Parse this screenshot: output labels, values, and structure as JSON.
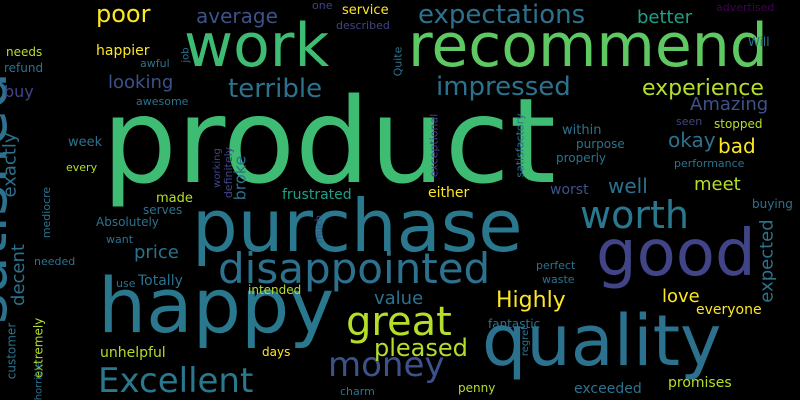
{
  "background": "#000000",
  "palette": {
    "green": "#3fbc73",
    "teal": "#2a788e",
    "tealblue": "#2c728e",
    "blue": "#3b528b",
    "indigo": "#414487",
    "purple": "#46337e",
    "deep": "#440154",
    "sea": "#21918c",
    "mint": "#5ec962",
    "lime": "#b5de2b",
    "yellow": "#fde725",
    "aqua": "#1fa187",
    "cyan": "#22a884"
  },
  "words": [
    {
      "text": "product",
      "size": 118,
      "color": "#3fbc73",
      "vertical": false
    },
    {
      "text": "purchase",
      "size": 72,
      "color": "#2a788e",
      "vertical": false
    },
    {
      "text": "quality",
      "size": 70,
      "color": "#2c728e",
      "vertical": false
    },
    {
      "text": "happy",
      "size": 76,
      "color": "#2a788e",
      "vertical": false
    },
    {
      "text": "good",
      "size": 64,
      "color": "#414487",
      "vertical": false
    },
    {
      "text": "work",
      "size": 60,
      "color": "#3fbc73",
      "vertical": false
    },
    {
      "text": "recommend",
      "size": 60,
      "color": "#5ec962",
      "vertical": false
    },
    {
      "text": "satisfied",
      "size": 60,
      "color": "#2c728e",
      "vertical": true
    },
    {
      "text": "disappointed",
      "size": 42,
      "color": "#2c728e",
      "vertical": false
    },
    {
      "text": "worth",
      "size": 38,
      "color": "#2a788e",
      "vertical": false
    },
    {
      "text": "great",
      "size": 40,
      "color": "#b5de2b",
      "vertical": false
    },
    {
      "text": "money",
      "size": 34,
      "color": "#3b528b",
      "vertical": false
    },
    {
      "text": "Excellent",
      "size": 34,
      "color": "#2a788e",
      "vertical": false
    },
    {
      "text": "expectations",
      "size": 26,
      "color": "#2c728e",
      "vertical": false
    },
    {
      "text": "impressed",
      "size": 26,
      "color": "#2c728e",
      "vertical": false
    },
    {
      "text": "terrible",
      "size": 26,
      "color": "#2c728e",
      "vertical": false
    },
    {
      "text": "experience",
      "size": 22,
      "color": "#b5de2b",
      "vertical": false
    },
    {
      "text": "pleased",
      "size": 24,
      "color": "#b5de2b",
      "vertical": false
    },
    {
      "text": "Highly",
      "size": 22,
      "color": "#fde725",
      "vertical": false
    },
    {
      "text": "poor",
      "size": 24,
      "color": "#fde725",
      "vertical": false
    },
    {
      "text": "average",
      "size": 20,
      "color": "#3b528b",
      "vertical": false
    },
    {
      "text": "better",
      "size": 18,
      "color": "#1fa187",
      "vertical": false
    },
    {
      "text": "Amazing",
      "size": 18,
      "color": "#3b528b",
      "vertical": false
    },
    {
      "text": "bad",
      "size": 20,
      "color": "#fde725",
      "vertical": false
    },
    {
      "text": "okay",
      "size": 20,
      "color": "#2c728e",
      "vertical": false
    },
    {
      "text": "well",
      "size": 20,
      "color": "#2c728e",
      "vertical": false
    },
    {
      "text": "meet",
      "size": 18,
      "color": "#b5de2b",
      "vertical": false
    },
    {
      "text": "looking",
      "size": 18,
      "color": "#3b528b",
      "vertical": false
    },
    {
      "text": "love",
      "size": 18,
      "color": "#fde725",
      "vertical": false
    },
    {
      "text": "value",
      "size": 18,
      "color": "#2c728e",
      "vertical": false
    },
    {
      "text": "price",
      "size": 18,
      "color": "#2c728e",
      "vertical": false
    },
    {
      "text": "expected",
      "size": 18,
      "color": "#2c728e",
      "vertical": true
    },
    {
      "text": "exactly",
      "size": 18,
      "color": "#2c728e",
      "vertical": true
    },
    {
      "text": "decent",
      "size": 18,
      "color": "#2c728e",
      "vertical": true
    },
    {
      "text": "broke",
      "size": 16,
      "color": "#2c728e",
      "vertical": true
    },
    {
      "text": "buy",
      "size": 16,
      "color": "#414487",
      "vertical": false
    },
    {
      "text": "frustrated",
      "size": 14,
      "color": "#1fa187",
      "vertical": false
    },
    {
      "text": "Totally",
      "size": 14,
      "color": "#2c728e",
      "vertical": false
    },
    {
      "text": "everyone",
      "size": 14,
      "color": "#fde725",
      "vertical": false
    },
    {
      "text": "promises",
      "size": 14,
      "color": "#b5de2b",
      "vertical": false
    },
    {
      "text": "exceeded",
      "size": 14,
      "color": "#2c728e",
      "vertical": false
    },
    {
      "text": "unhelpful",
      "size": 14,
      "color": "#b5de2b",
      "vertical": false
    },
    {
      "text": "either",
      "size": 14,
      "color": "#fde725",
      "vertical": false
    },
    {
      "text": "worst",
      "size": 14,
      "color": "#3b528b",
      "vertical": false
    },
    {
      "text": "happier",
      "size": 14,
      "color": "#fde725",
      "vertical": false
    },
    {
      "text": "within",
      "size": 13,
      "color": "#2c728e",
      "vertical": false
    },
    {
      "text": "service",
      "size": 13,
      "color": "#fde725",
      "vertical": false
    },
    {
      "text": "made",
      "size": 13,
      "color": "#b5de2b",
      "vertical": false
    },
    {
      "text": "week",
      "size": 13,
      "color": "#2c728e",
      "vertical": false
    },
    {
      "text": "awesome",
      "size": 11,
      "color": "#2c728e",
      "vertical": false
    },
    {
      "text": "Absolutely",
      "size": 12,
      "color": "#2c728e",
      "vertical": false
    },
    {
      "text": "fantastic",
      "size": 12,
      "color": "#2c728e",
      "vertical": false
    },
    {
      "text": "customer",
      "size": 12,
      "color": "#2c728e",
      "vertical": true
    },
    {
      "text": "extremely",
      "size": 12,
      "color": "#b5de2b",
      "vertical": true
    },
    {
      "text": "mediocre",
      "size": 11,
      "color": "#2c728e",
      "vertical": true
    },
    {
      "text": "definitely",
      "size": 11,
      "color": "#414487",
      "vertical": true
    },
    {
      "text": "satisfactory",
      "size": 11,
      "color": "#2c728e",
      "vertical": true
    },
    {
      "text": "exceptional",
      "size": 11,
      "color": "#414487",
      "vertical": true
    },
    {
      "text": "Quite",
      "size": 11,
      "color": "#2c728e",
      "vertical": true
    },
    {
      "text": "working",
      "size": 10,
      "color": "#414487",
      "vertical": true
    },
    {
      "text": "regret",
      "size": 10,
      "color": "#2c728e",
      "vertical": true
    },
    {
      "text": "horrible",
      "size": 10,
      "color": "#2c728e",
      "vertical": true
    },
    {
      "text": "much",
      "size": 10,
      "color": "#414487",
      "vertical": true
    },
    {
      "text": "job",
      "size": 10,
      "color": "#2c728e",
      "vertical": true
    },
    {
      "text": "needs",
      "size": 12,
      "color": "#b5de2b",
      "vertical": false
    },
    {
      "text": "refund",
      "size": 12,
      "color": "#2c728e",
      "vertical": false
    },
    {
      "text": "awful",
      "size": 11,
      "color": "#2c728e",
      "vertical": false
    },
    {
      "text": "one",
      "size": 11,
      "color": "#414487",
      "vertical": false
    },
    {
      "text": "described",
      "size": 11,
      "color": "#414487",
      "vertical": false
    },
    {
      "text": "advertised",
      "size": 11,
      "color": "#440154",
      "vertical": false
    },
    {
      "text": "Will",
      "size": 12,
      "color": "#2c728e",
      "vertical": false
    },
    {
      "text": "seen",
      "size": 11,
      "color": "#414487",
      "vertical": false
    },
    {
      "text": "stopped",
      "size": 12,
      "color": "#b5de2b",
      "vertical": false
    },
    {
      "text": "purpose",
      "size": 12,
      "color": "#2c728e",
      "vertical": false
    },
    {
      "text": "properly",
      "size": 12,
      "color": "#2c728e",
      "vertical": false
    },
    {
      "text": "performance",
      "size": 11,
      "color": "#2c728e",
      "vertical": false
    },
    {
      "text": "buying",
      "size": 12,
      "color": "#2c728e",
      "vertical": false
    },
    {
      "text": "serves",
      "size": 12,
      "color": "#2c728e",
      "vertical": false
    },
    {
      "text": "want",
      "size": 11,
      "color": "#2c728e",
      "vertical": false
    },
    {
      "text": "needed",
      "size": 11,
      "color": "#2c728e",
      "vertical": false
    },
    {
      "text": "use",
      "size": 11,
      "color": "#2c728e",
      "vertical": false
    },
    {
      "text": "intended",
      "size": 12,
      "color": "#b5de2b",
      "vertical": false
    },
    {
      "text": "perfect",
      "size": 11,
      "color": "#2c728e",
      "vertical": false
    },
    {
      "text": "waste",
      "size": 11,
      "color": "#2c728e",
      "vertical": false
    },
    {
      "text": "days",
      "size": 12,
      "color": "#fde725",
      "vertical": false
    },
    {
      "text": "charm",
      "size": 11,
      "color": "#2c728e",
      "vertical": false
    },
    {
      "text": "penny",
      "size": 12,
      "color": "#b5de2b",
      "vertical": false
    },
    {
      "text": "every",
      "size": 11,
      "color": "#b5de2b",
      "vertical": false
    }
  ]
}
